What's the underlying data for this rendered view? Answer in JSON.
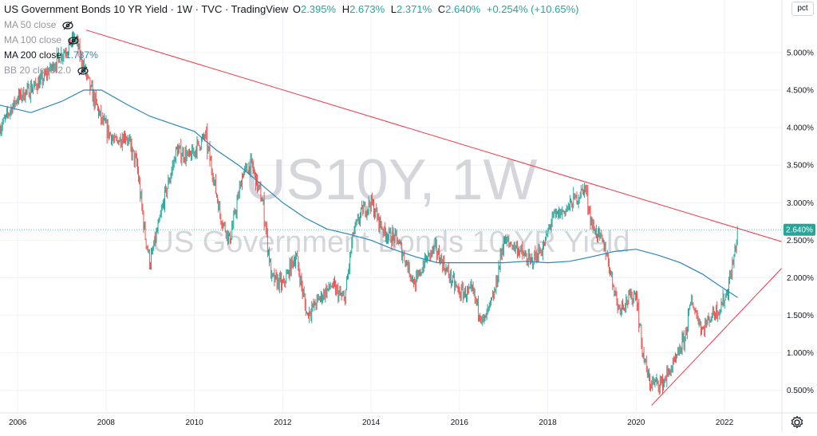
{
  "legend": {
    "title": "US Government Bonds 10 YR Yield · 1W · TVC · TradingView",
    "o_key": "O",
    "o_val": "2.395%",
    "h_key": "H",
    "h_val": "2.673%",
    "l_key": "L",
    "l_val": "2.371%",
    "c_key": "C",
    "c_val": "2.640%",
    "change": "+0.254% (+10.65%)",
    "indicators": [
      {
        "label": "MA 50 close",
        "value": "",
        "visible": false
      },
      {
        "label": "MA 100 close",
        "value": "",
        "visible": false
      },
      {
        "label": "MA 200 close",
        "value": "1.737%",
        "visible": true
      },
      {
        "label": "BB 20 close 2.0",
        "value": "",
        "visible": false
      }
    ]
  },
  "watermark": {
    "symbol": "US10Y, 1W",
    "name": "US Government Bonds 10 YR Yield"
  },
  "scale_button": "pct",
  "last_price_label": "2.640%",
  "colors": {
    "up": "#26a69a",
    "down": "#ef5350",
    "ma200": "#2a86b8",
    "trendline": "#f23645",
    "price_badge": "#26a69a"
  },
  "chart_data": {
    "type": "line",
    "x_range": [
      2005.6,
      2023.3
    ],
    "y_range": [
      0.2,
      5.7
    ],
    "x_ticks": [
      "2006",
      "2008",
      "2010",
      "2012",
      "2014",
      "2016",
      "2018",
      "2020",
      "2022"
    ],
    "y_ticks": [
      "0.500%",
      "1.000%",
      "1.500%",
      "2.000%",
      "2.500%",
      "3.000%",
      "3.500%",
      "4.000%",
      "4.500%",
      "5.000%"
    ],
    "y_tick_values": [
      0.5,
      1.0,
      1.5,
      2.0,
      2.5,
      3.0,
      3.5,
      4.0,
      4.5,
      5.0
    ],
    "price_series": {
      "name": "",
      "x": [
        2005.6,
        2006.0,
        2006.5,
        2006.9,
        2007.3,
        2007.45,
        2007.6,
        2007.9,
        2008.2,
        2008.45,
        2008.7,
        2008.9,
        2009.0,
        2009.3,
        2009.6,
        2009.9,
        2010.25,
        2010.6,
        2010.8,
        2011.1,
        2011.3,
        2011.55,
        2011.75,
        2012.0,
        2012.3,
        2012.55,
        2012.8,
        2013.1,
        2013.4,
        2013.6,
        2013.8,
        2014.0,
        2014.3,
        2014.6,
        2015.0,
        2015.2,
        2015.45,
        2015.7,
        2016.0,
        2016.3,
        2016.55,
        2016.8,
        2017.0,
        2017.3,
        2017.6,
        2017.9,
        2018.1,
        2018.4,
        2018.85,
        2019.0,
        2019.3,
        2019.6,
        2019.8,
        2020.0,
        2020.15,
        2020.3,
        2020.6,
        2020.9,
        2021.1,
        2021.25,
        2021.5,
        2021.7,
        2021.9,
        2022.05,
        2022.2,
        2022.3
      ],
      "y": [
        4.0,
        4.4,
        4.6,
        4.9,
        5.2,
        4.9,
        4.6,
        4.1,
        3.8,
        3.9,
        3.5,
        2.5,
        2.2,
        3.0,
        3.7,
        3.6,
        3.9,
        2.8,
        2.5,
        3.4,
        3.5,
        3.0,
        2.0,
        1.9,
        2.3,
        1.5,
        1.7,
        1.9,
        1.7,
        2.6,
        2.9,
        3.0,
        2.6,
        2.5,
        1.9,
        2.2,
        2.4,
        2.1,
        1.8,
        1.8,
        1.4,
        1.8,
        2.5,
        2.4,
        2.2,
        2.4,
        2.8,
        2.9,
        3.2,
        2.7,
        2.4,
        1.6,
        1.7,
        1.8,
        1.0,
        0.6,
        0.6,
        0.9,
        1.2,
        1.7,
        1.3,
        1.5,
        1.6,
        1.8,
        2.2,
        2.64
      ]
    },
    "series": [
      {
        "name": "MA 200 close",
        "x": [
          2005.6,
          2006.3,
          2007.0,
          2007.5,
          2007.9,
          2008.5,
          2009.0,
          2009.5,
          2010.0,
          2010.5,
          2011.0,
          2011.5,
          2012.0,
          2012.5,
          2013.0,
          2013.5,
          2014.0,
          2014.5,
          2015.0,
          2015.5,
          2016.0,
          2016.5,
          2017.0,
          2017.5,
          2018.0,
          2018.5,
          2019.0,
          2019.5,
          2020.0,
          2020.5,
          2021.0,
          2021.5,
          2022.0,
          2022.3
        ],
        "y": [
          4.3,
          4.2,
          4.35,
          4.5,
          4.5,
          4.3,
          4.15,
          4.05,
          3.95,
          3.7,
          3.5,
          3.25,
          3.0,
          2.8,
          2.65,
          2.58,
          2.5,
          2.38,
          2.28,
          2.2,
          2.2,
          2.2,
          2.2,
          2.22,
          2.2,
          2.22,
          2.28,
          2.35,
          2.38,
          2.3,
          2.2,
          2.05,
          1.85,
          1.737
        ]
      }
    ],
    "trendlines": [
      {
        "from": [
          2007.55,
          5.3
        ],
        "to": [
          2023.3,
          2.48
        ]
      },
      {
        "from": [
          2020.35,
          0.3
        ],
        "to": [
          2023.3,
          2.13
        ]
      }
    ],
    "last_value": 2.64
  }
}
